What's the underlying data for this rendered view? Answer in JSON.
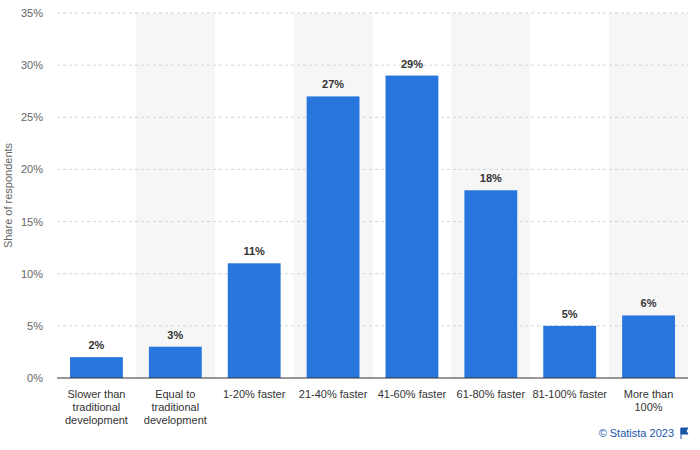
{
  "chart_data": {
    "type": "bar",
    "ylabel": "Share of respondents",
    "source": "© Statista 2023",
    "categories": [
      "Slower than traditional development",
      "Equal to traditional development",
      "1-20% faster",
      "21-40% faster",
      "41-60% faster",
      "61-80% faster",
      "81-100% faster",
      "More than 100%"
    ],
    "values": [
      2,
      3,
      11,
      27,
      29,
      18,
      5,
      6
    ],
    "value_labels": [
      "2%",
      "3%",
      "11%",
      "27%",
      "29%",
      "18%",
      "5%",
      "6%"
    ],
    "color": "#2876dd",
    "ylim": [
      0,
      35
    ],
    "yticks": [
      {
        "value": 0,
        "label": "0%"
      },
      {
        "value": 5,
        "label": "5%"
      },
      {
        "value": 10,
        "label": "10%"
      },
      {
        "value": 15,
        "label": "15%"
      },
      {
        "value": 20,
        "label": "20%"
      },
      {
        "value": 25,
        "label": "25%"
      },
      {
        "value": 30,
        "label": "30%"
      },
      {
        "value": 35,
        "label": "35%"
      }
    ],
    "grid": true,
    "data_labels": true
  }
}
